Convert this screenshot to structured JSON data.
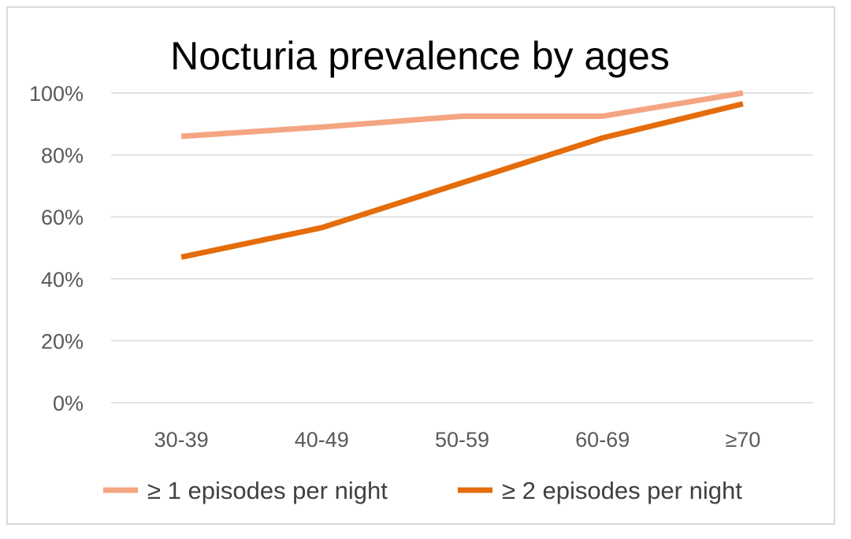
{
  "chart_data": {
    "type": "line",
    "title": "Nocturia prevalence by ages",
    "xlabel": "",
    "ylabel": "",
    "categories": [
      "30-39",
      "40-49",
      "50-59",
      "60-69",
      "≥70"
    ],
    "y_ticks": [
      "0%",
      "20%",
      "40%",
      "60%",
      "80%",
      "100%"
    ],
    "ylim": [
      0,
      100
    ],
    "y_unit": "%",
    "grid": true,
    "legend_position": "bottom",
    "series": [
      {
        "name": "≥ 1 episodes per night",
        "values": [
          86,
          89,
          92.5,
          92.5,
          100
        ],
        "color": "#f4a582"
      },
      {
        "name": "≥ 2 episodes per night",
        "values": [
          47,
          56.5,
          71,
          85.5,
          96.5
        ],
        "color": "#e46c0a"
      }
    ]
  }
}
